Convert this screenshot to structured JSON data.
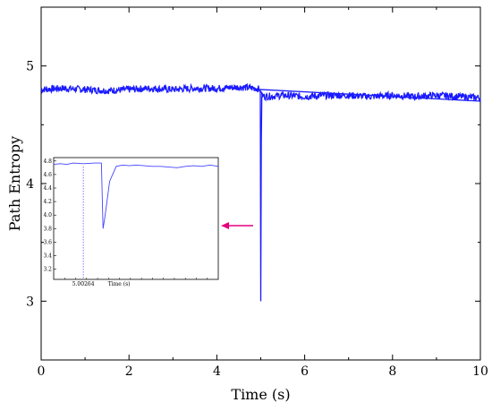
{
  "chart_data": [
    {
      "type": "line",
      "title": "",
      "xlabel": "Time (s)",
      "ylabel": "Path Entropy",
      "xlim": [
        0,
        10
      ],
      "ylim": [
        2.5,
        5.5
      ],
      "xticks": [
        0,
        2,
        4,
        6,
        8,
        10
      ],
      "xtick_labels": [
        "0",
        "2",
        "4",
        "6",
        "8",
        "10"
      ],
      "yticks": [
        3,
        4,
        5
      ],
      "ytick_labels": [
        "3",
        "4",
        "5"
      ],
      "grid": false,
      "line_color": "#1a1aff",
      "series": [
        {
          "x": [
            0,
            0.5,
            1,
            1.5,
            2,
            2.5,
            3,
            3.5,
            4,
            4.5,
            4.9,
            4.99,
            5.0,
            5.003,
            5.01,
            5.1,
            5.5,
            6,
            6.5,
            7,
            7.5,
            8,
            8.5,
            9,
            9.5,
            10
          ],
          "values": [
            4.8,
            4.81,
            4.8,
            4.79,
            4.8,
            4.81,
            4.8,
            4.81,
            4.81,
            4.82,
            4.81,
            4.8,
            3.0,
            4.35,
            4.75,
            4.74,
            4.75,
            4.74,
            4.75,
            4.75,
            4.74,
            4.75,
            4.74,
            4.75,
            4.74,
            4.73
          ]
        }
      ]
    },
    {
      "type": "line",
      "title": "",
      "xlabel": "Time (s)",
      "ylabel": "",
      "xlim": [
        0,
        1
      ],
      "ylim": [
        3.05,
        4.85
      ],
      "yticks": [
        3.0,
        3.2,
        3.4,
        3.6,
        3.8,
        4.0,
        4.2,
        4.4,
        4.6,
        4.8
      ],
      "ytick_labels": [
        "3.0",
        "3.2",
        "3.4",
        "3.6",
        "3.8",
        "4.0",
        "4.2",
        "4.4",
        "4.6",
        "4.8"
      ],
      "xtick_label": "5.00264",
      "xtick_label_value": 0.18,
      "marker_value": 0.18,
      "arrow_color": "#e6007e",
      "line_color": "#4444ff",
      "series": [
        {
          "x": [
            0,
            0.04,
            0.08,
            0.12,
            0.18,
            0.25,
            0.29,
            0.3,
            0.31,
            0.34,
            0.38,
            0.42,
            0.46,
            0.5,
            0.55,
            0.6,
            0.65,
            0.7,
            0.75,
            0.8,
            0.85,
            0.9,
            0.95,
            1.0
          ],
          "values": [
            4.75,
            4.76,
            4.75,
            4.77,
            4.76,
            4.77,
            4.77,
            3.8,
            3.95,
            4.5,
            4.72,
            4.74,
            4.73,
            4.74,
            4.73,
            4.72,
            4.72,
            4.71,
            4.7,
            4.72,
            4.73,
            4.72,
            4.74,
            4.72
          ]
        }
      ]
    }
  ]
}
